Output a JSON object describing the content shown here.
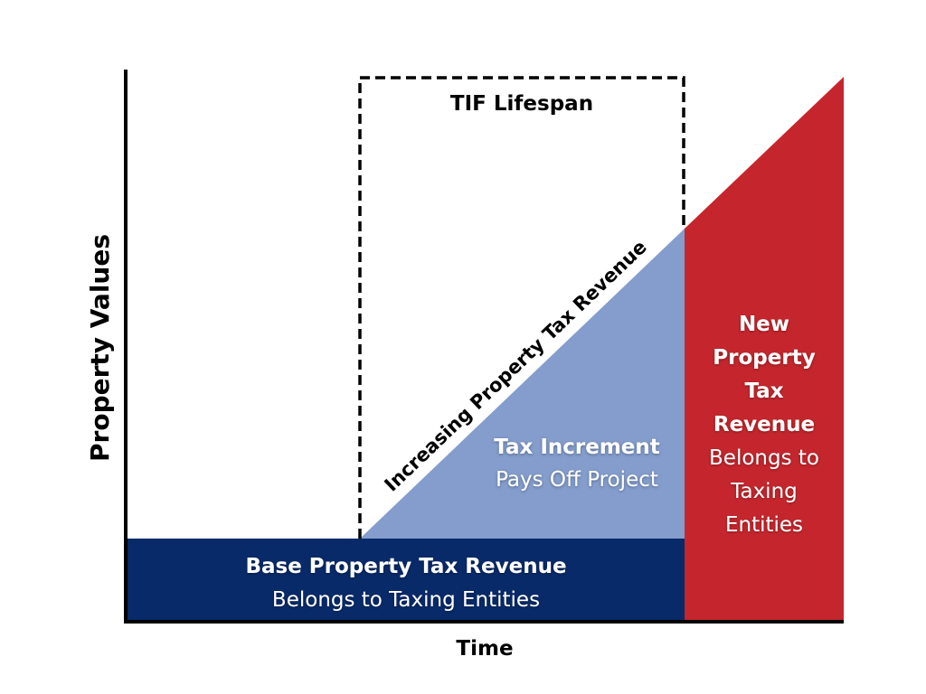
{
  "colors": {
    "base": "#082a69",
    "increment": "#849dcc",
    "new_revenue": "#c5262d",
    "axis": "#000000",
    "label_light": "#ffffff"
  },
  "axes": {
    "y_label": "Property Values",
    "x_label": "Time"
  },
  "tif_lifespan": {
    "label": "TIF Lifespan"
  },
  "diagonal_label": "Increasing Property Tax Revenue",
  "regions": {
    "base": {
      "title": "Base Property Tax Revenue",
      "subtitle": "Belongs to Taxing Entities"
    },
    "increment": {
      "title": "Tax Increment",
      "subtitle": "Pays Off Project"
    },
    "new": {
      "title_lines": [
        "New",
        "Property",
        "Tax",
        "Revenue"
      ],
      "subtitle_lines": [
        "Belongs to",
        "Taxing",
        "Entities"
      ]
    }
  }
}
